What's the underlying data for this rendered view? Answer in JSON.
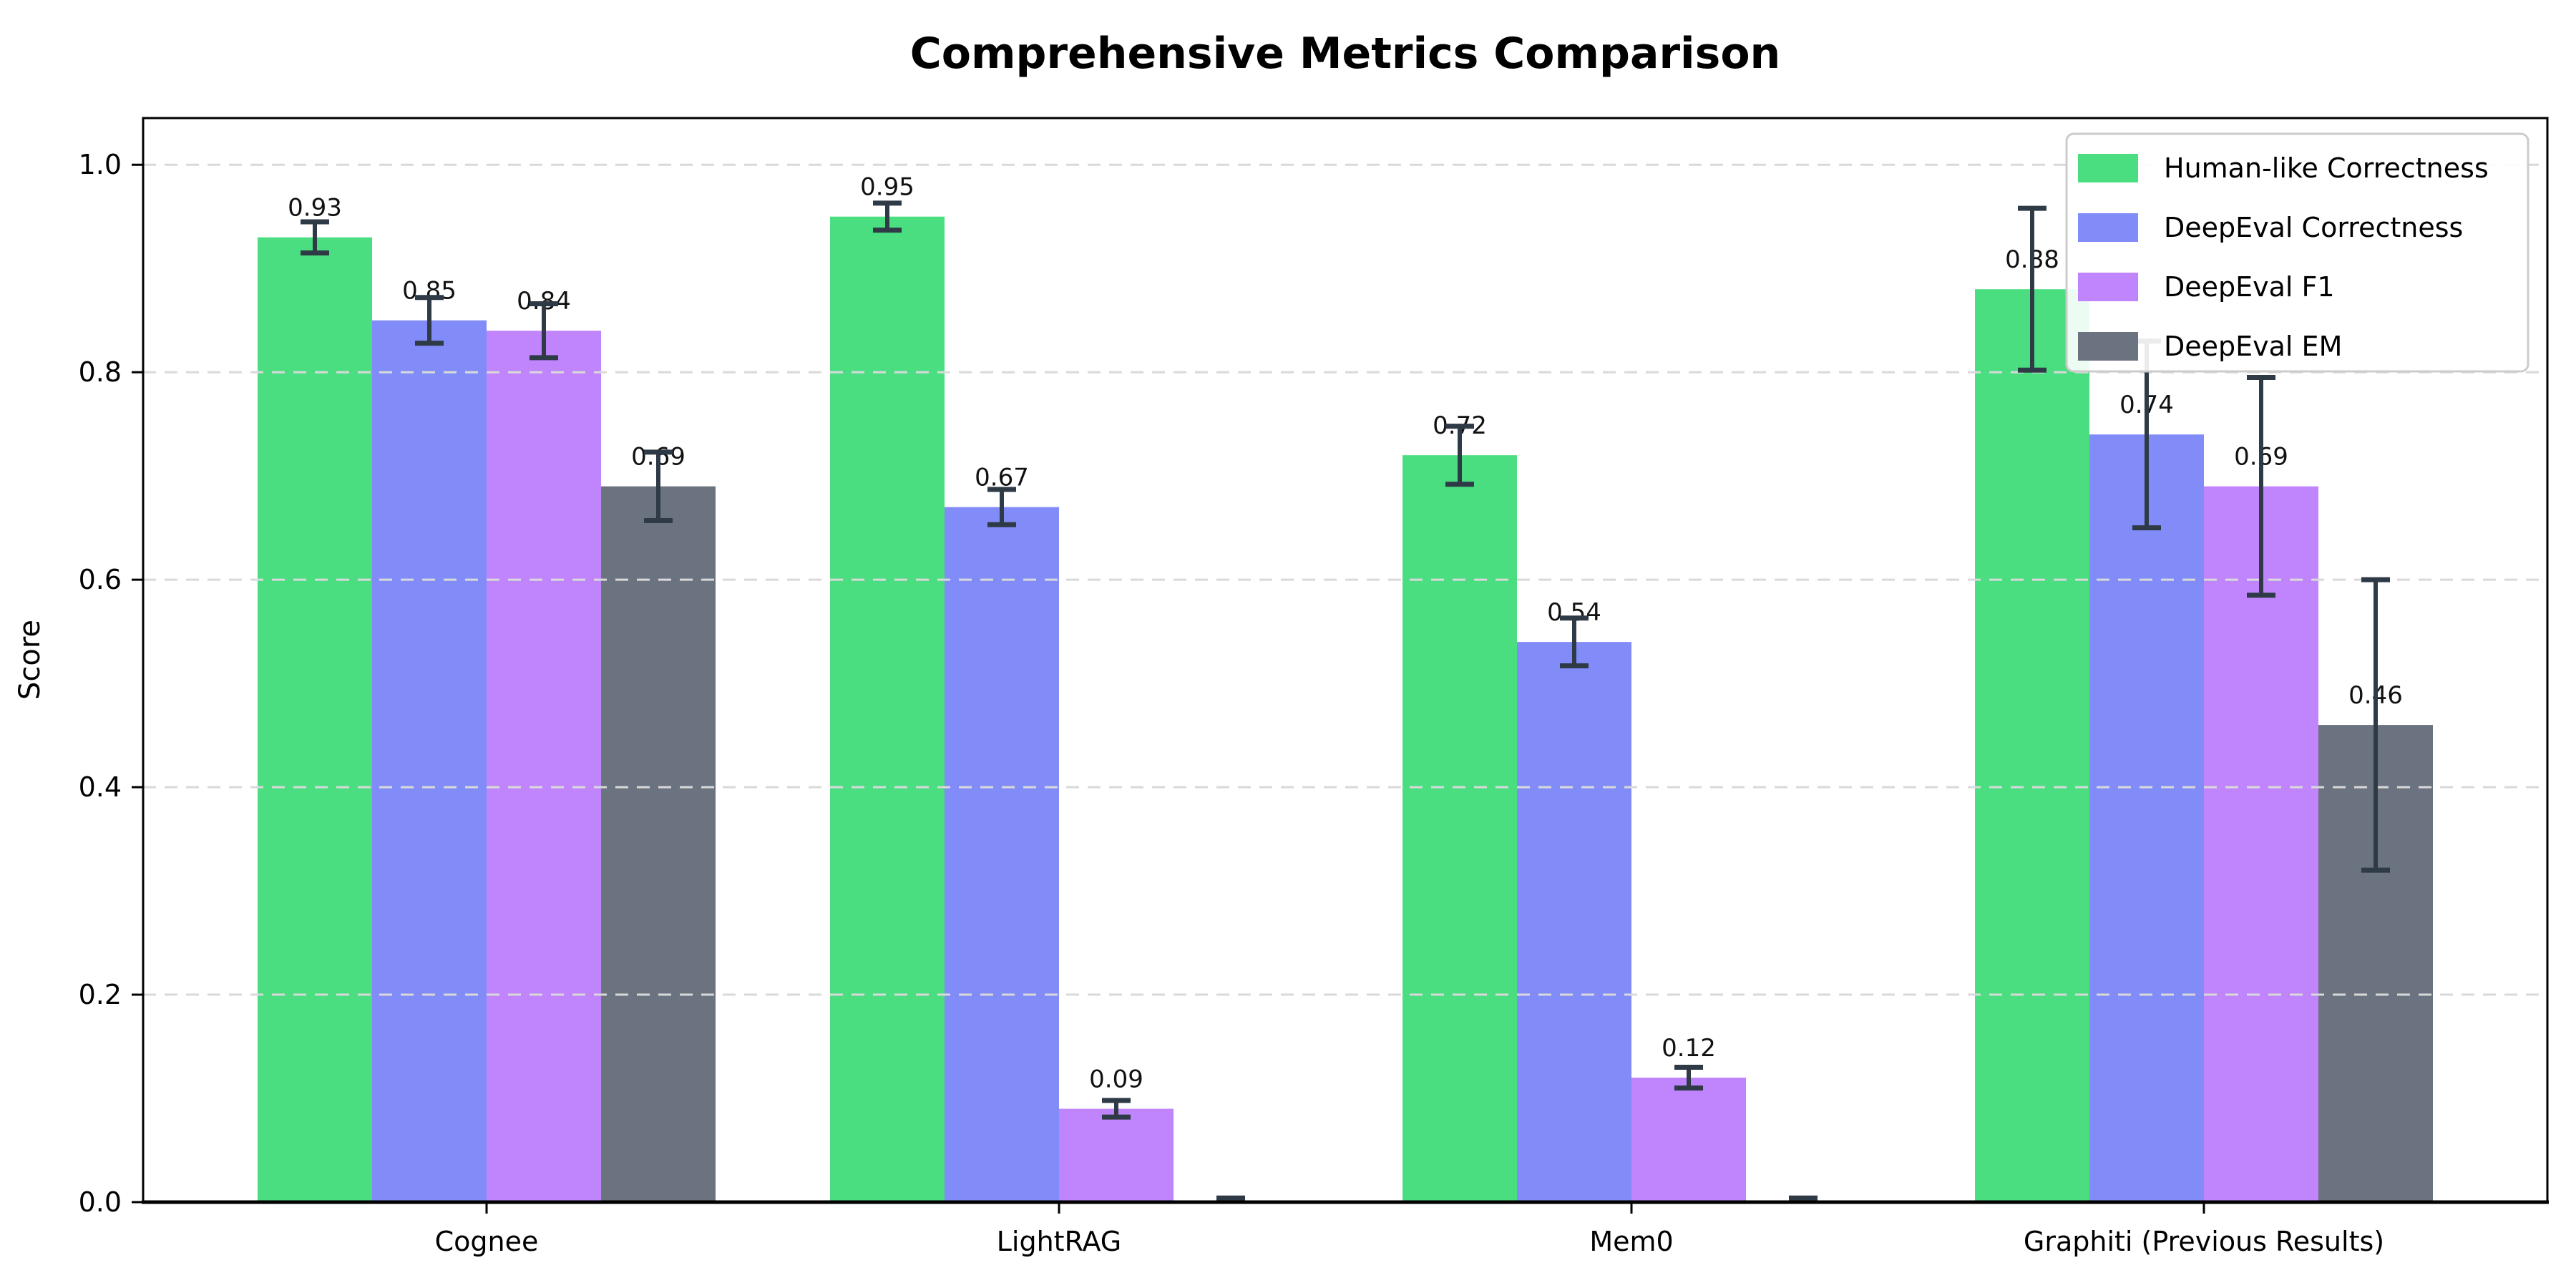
{
  "chart_data": {
    "type": "bar",
    "title": "Comprehensive Metrics Comparison",
    "xlabel": "",
    "ylabel": "Score",
    "categories": [
      "Cognee",
      "LightRAG",
      "Mem0",
      "Graphiti (Previous Results)"
    ],
    "xlim": [
      -0.6,
      3.6
    ],
    "ylim": [
      0,
      1.045
    ],
    "yticks": [
      0.0,
      0.2,
      0.4,
      0.6,
      0.8,
      1.0
    ],
    "yticklabels": [
      "0.0",
      "0.2",
      "0.4",
      "0.6",
      "0.8",
      "1.0"
    ],
    "grid": "horizontal-dashed-over-bars",
    "legend_position": "upper right",
    "bar_group_width": 0.8,
    "series": [
      {
        "name": "Human-like Correctness",
        "color": "#4ade80",
        "values": [
          0.93,
          0.95,
          0.72,
          0.88
        ],
        "errors": [
          0.015,
          0.013,
          0.028,
          0.078
        ],
        "labels": [
          "0.93",
          "0.95",
          "0.72",
          "0.88"
        ]
      },
      {
        "name": "DeepEval Correctness",
        "color": "#818cf8",
        "values": [
          0.85,
          0.67,
          0.54,
          0.74
        ],
        "errors": [
          0.022,
          0.017,
          0.023,
          0.09
        ],
        "labels": [
          "0.85",
          "0.67",
          "0.54",
          "0.74"
        ]
      },
      {
        "name": "DeepEval F1",
        "color": "#c084fc",
        "values": [
          0.84,
          0.09,
          0.12,
          0.69
        ],
        "errors": [
          0.026,
          0.008,
          0.01,
          0.105
        ],
        "labels": [
          "0.84",
          "0.09",
          "0.12",
          "0.69"
        ]
      },
      {
        "name": "DeepEval EM",
        "color": "#6b7280",
        "values": [
          0.69,
          0.0,
          0.0,
          0.46
        ],
        "errors": [
          0.033,
          0.004,
          0.004,
          0.14
        ],
        "labels": [
          "0.69",
          "",
          "",
          "0.46"
        ]
      }
    ],
    "style": {
      "error_bar_color": "#2f3a47",
      "grid_color": "#d9d9d9",
      "axis_color": "#000000",
      "legend_border_color": "#cccccc",
      "legend_bg_color": "#ffffff"
    }
  }
}
